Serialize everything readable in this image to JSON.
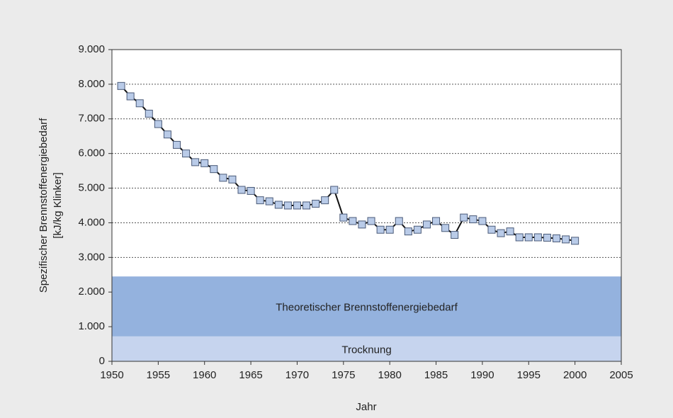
{
  "chart_data": {
    "type": "line",
    "ylabel": [
      "Spezifischer Brennstoffenergiebedarf",
      "[kJ/kg Klinker]"
    ],
    "xlabel": "Jahr",
    "x": [
      1951,
      1952,
      1953,
      1954,
      1955,
      1956,
      1957,
      1958,
      1959,
      1960,
      1961,
      1962,
      1963,
      1964,
      1965,
      1966,
      1967,
      1968,
      1969,
      1970,
      1971,
      1972,
      1973,
      1974,
      1975,
      1976,
      1977,
      1978,
      1979,
      1980,
      1981,
      1982,
      1983,
      1984,
      1985,
      1986,
      1987,
      1988,
      1989,
      1990,
      1991,
      1992,
      1993,
      1994,
      1995,
      1996,
      1997,
      1998,
      1999,
      2000
    ],
    "series": [
      {
        "color": "#111111",
        "marker_color": "#b9cbe8",
        "values": [
          7950,
          7650,
          7450,
          7150,
          6850,
          6550,
          6250,
          6000,
          5750,
          5720,
          5550,
          5300,
          5250,
          4950,
          4920,
          4650,
          4620,
          4520,
          4500,
          4500,
          4500,
          4550,
          4650,
          4950,
          4150,
          4050,
          3950,
          4050,
          3800,
          3800,
          4050,
          3750,
          3800,
          3950,
          4050,
          3850,
          3650,
          4150,
          4100,
          4050,
          3800,
          3700,
          3750,
          3580,
          3580,
          3580,
          3570,
          3550,
          3520,
          3480
        ]
      }
    ],
    "bands": [
      {
        "label": "Trocknung",
        "from": 0,
        "to": 720,
        "color": "#c6d4ee"
      },
      {
        "label": "Theoretischer Brennstoffenergiebedarf",
        "from": 720,
        "to": 2450,
        "color": "#94b2de"
      }
    ],
    "xlim": [
      1950,
      2005
    ],
    "xticks": [
      1950,
      1955,
      1960,
      1965,
      1970,
      1975,
      1980,
      1985,
      1990,
      1995,
      2000,
      2005
    ],
    "ylim": [
      0,
      9000
    ],
    "yticks": [
      0,
      {
        "value": 1000,
        "label": "1.000"
      },
      {
        "value": 2000,
        "label": "2.000"
      },
      {
        "value": 3000,
        "label": "3.000"
      },
      {
        "value": 4000,
        "label": "4.000"
      },
      {
        "value": 5000,
        "label": "5.000"
      },
      {
        "value": 6000,
        "label": "6.000"
      },
      {
        "value": 7000,
        "label": "7.000"
      },
      {
        "value": 8000,
        "label": "8.000"
      },
      {
        "value": 9000,
        "label": "9.000"
      }
    ],
    "grid": true
  }
}
